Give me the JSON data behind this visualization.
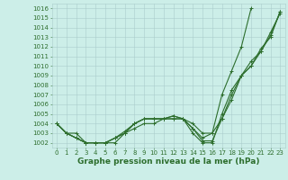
{
  "title": "Graphe pression niveau de la mer (hPa)",
  "background_color": "#cceee8",
  "grid_color": "#aacccc",
  "line_color": "#2d6e2d",
  "xlim": [
    -0.5,
    23.5
  ],
  "ylim": [
    1001.5,
    1016.5
  ],
  "yticks": [
    1002,
    1003,
    1004,
    1005,
    1006,
    1007,
    1008,
    1009,
    1010,
    1011,
    1012,
    1013,
    1014,
    1015,
    1016
  ],
  "xticks": [
    0,
    1,
    2,
    3,
    4,
    5,
    6,
    7,
    8,
    9,
    10,
    11,
    12,
    13,
    14,
    15,
    16,
    17,
    18,
    19,
    20,
    21,
    22,
    23
  ],
  "series": [
    [
      1004.0,
      1003.0,
      1003.0,
      1002.0,
      1002.0,
      1002.0,
      1002.0,
      1003.0,
      1004.0,
      1004.5,
      1004.5,
      1004.5,
      1004.8,
      1004.5,
      1003.0,
      1002.0,
      1002.0,
      1005.0,
      1007.5,
      1009.0,
      1010.0,
      1011.5,
      1013.5,
      1015.5
    ],
    [
      1004.0,
      1003.0,
      1002.5,
      1002.0,
      1002.0,
      1002.0,
      1002.5,
      1003.0,
      1003.5,
      1004.0,
      1004.0,
      1004.5,
      1004.5,
      1004.5,
      1004.0,
      1003.0,
      1003.0,
      1004.5,
      1006.5,
      1009.0,
      1010.5,
      1011.5,
      1013.2,
      1015.7
    ],
    [
      1004.0,
      1003.0,
      1002.5,
      1002.0,
      1002.0,
      1002.0,
      1002.5,
      1003.2,
      1004.0,
      1004.5,
      1004.5,
      1004.5,
      1004.8,
      1004.5,
      1003.5,
      1002.5,
      1003.0,
      1007.0,
      1009.5,
      1012.0,
      1016.0,
      null,
      null,
      null
    ],
    [
      1004.0,
      1003.0,
      1002.5,
      1002.0,
      1002.0,
      1002.0,
      1002.5,
      1003.0,
      1004.0,
      1004.5,
      1004.5,
      1004.5,
      1004.5,
      1004.5,
      1003.5,
      1002.2,
      1002.2,
      1004.5,
      1007.0,
      1009.0,
      1010.0,
      1011.8,
      1013.0,
      1015.7
    ]
  ],
  "marker": "+",
  "markersize": 3,
  "linewidth": 0.8,
  "title_fontsize": 6.5,
  "tick_fontsize": 5.0,
  "figsize": [
    3.2,
    2.0
  ],
  "dpi": 100
}
